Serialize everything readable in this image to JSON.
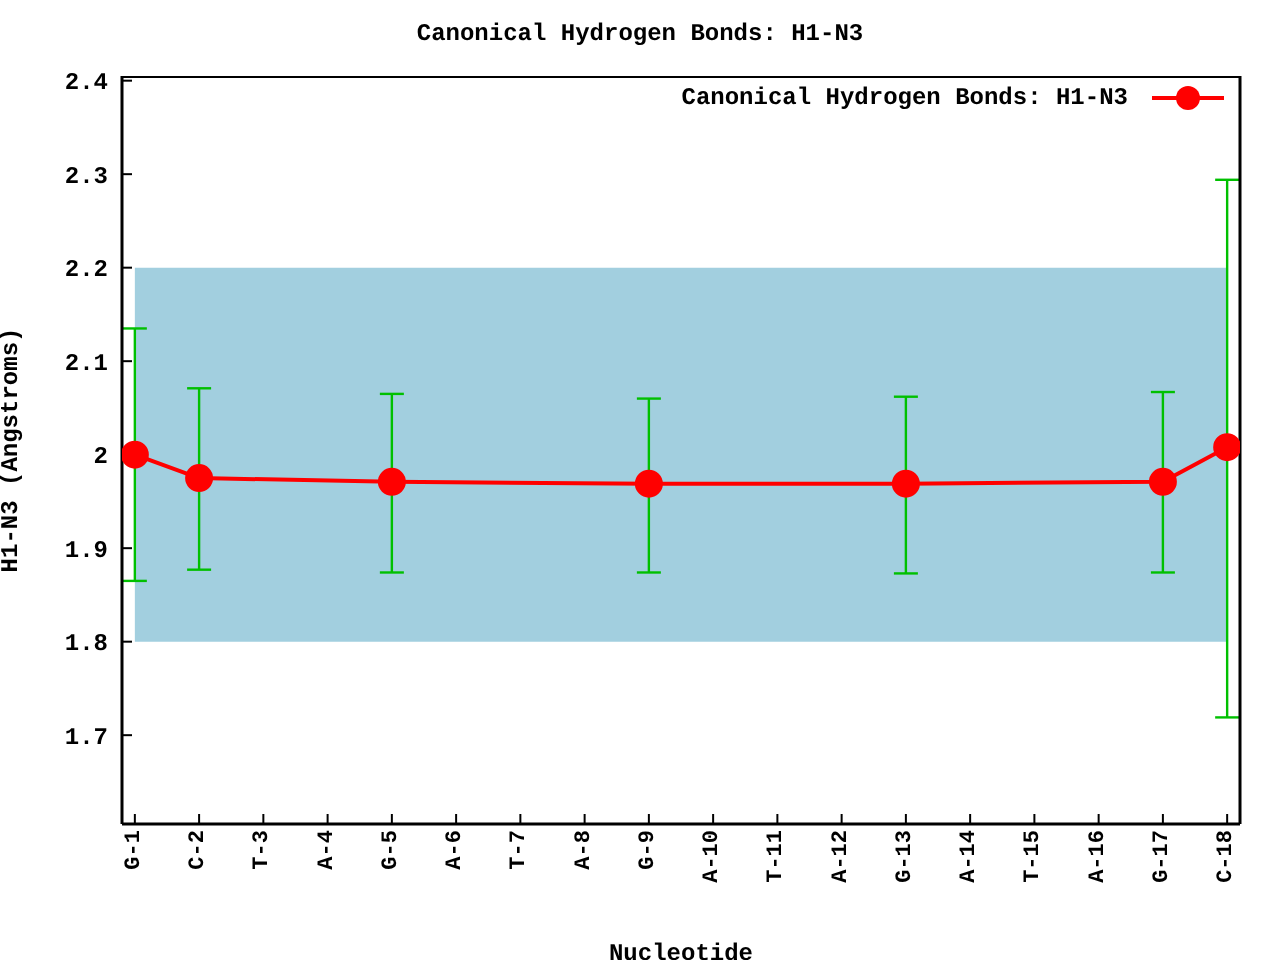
{
  "chart_data": {
    "type": "line",
    "title": "Canonical Hydrogen Bonds: H1-N3",
    "xlabel": "Nucleotide",
    "ylabel": "H1-N3 (Angstroms)",
    "categories": [
      "G-1",
      "C-2",
      "T-3",
      "A-4",
      "G-5",
      "A-6",
      "T-7",
      "A-8",
      "G-9",
      "A-10",
      "T-11",
      "A-12",
      "G-13",
      "A-14",
      "T-15",
      "A-16",
      "G-17",
      "C-18"
    ],
    "series": [
      {
        "name": "Canonical Hydrogen Bonds: H1-N3",
        "color": "#ff0000",
        "values": [
          2.0,
          1.975,
          null,
          null,
          1.971,
          null,
          null,
          null,
          1.969,
          null,
          null,
          null,
          1.969,
          null,
          null,
          null,
          1.971,
          2.008
        ],
        "errors": [
          [
            1.865,
            2.135
          ],
          [
            1.877,
            2.071
          ],
          null,
          null,
          [
            1.874,
            2.065
          ],
          null,
          null,
          null,
          [
            1.874,
            2.06
          ],
          null,
          null,
          null,
          [
            1.873,
            2.062
          ],
          null,
          null,
          null,
          [
            1.874,
            2.067
          ],
          [
            1.719,
            2.294
          ]
        ]
      }
    ],
    "ylim": [
      1.605,
      2.405
    ],
    "yticks": [
      1.7,
      1.8,
      1.9,
      {
        "value": 2,
        "label": "2"
      },
      2.1,
      2.2,
      2.3,
      2.4
    ],
    "bands": [
      {
        "axis": "y",
        "from": 1.8,
        "to": 2.2,
        "color": "#a2cfdf"
      }
    ],
    "grid": false,
    "legend": "top right",
    "marker": "circle",
    "line_style": "solid"
  }
}
